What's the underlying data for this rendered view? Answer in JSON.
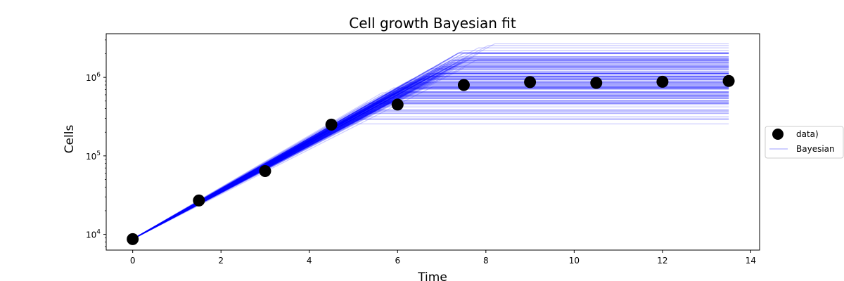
{
  "chart_data": {
    "type": "line",
    "title": "Cell growth Bayesian fit",
    "xlabel": "Time",
    "ylabel": "Cells",
    "xlim": [
      -0.6,
      14.2
    ],
    "ylim": [
      6300,
      3600000
    ],
    "y_scale": "log",
    "x_ticks": [
      0,
      2,
      4,
      6,
      8,
      10,
      12,
      14
    ],
    "x_tick_labels": [
      "0",
      "2",
      "4",
      "6",
      "8",
      "10",
      "12",
      "14"
    ],
    "y_major_ticks": [
      10000,
      100000,
      1000000
    ],
    "y_tick_exponents": [
      "4",
      "5",
      "6"
    ],
    "grid": false,
    "legend_position": "outside-right",
    "series": [
      {
        "name": "data)",
        "kind": "scatter",
        "color": "#000000",
        "x": [
          0,
          1.5,
          3,
          4.5,
          6,
          7.5,
          9,
          10.5,
          12,
          13.5
        ],
        "y": [
          8700,
          27000,
          64000,
          250000,
          450000,
          800000,
          870000,
          850000,
          880000,
          900000
        ]
      },
      {
        "name": "Bayesian",
        "kind": "ensemble-lines",
        "color": "#0000ff",
        "line_alpha": 0.2,
        "n_samples": 150,
        "x_start": 0,
        "x_end": 13.5,
        "y0": 8700,
        "growth_rate_mean": 0.71,
        "growth_rate_sd": 0.02,
        "plateau_min": 130000,
        "plateau_max": 2700000,
        "plateau_median": 900000
      }
    ]
  }
}
